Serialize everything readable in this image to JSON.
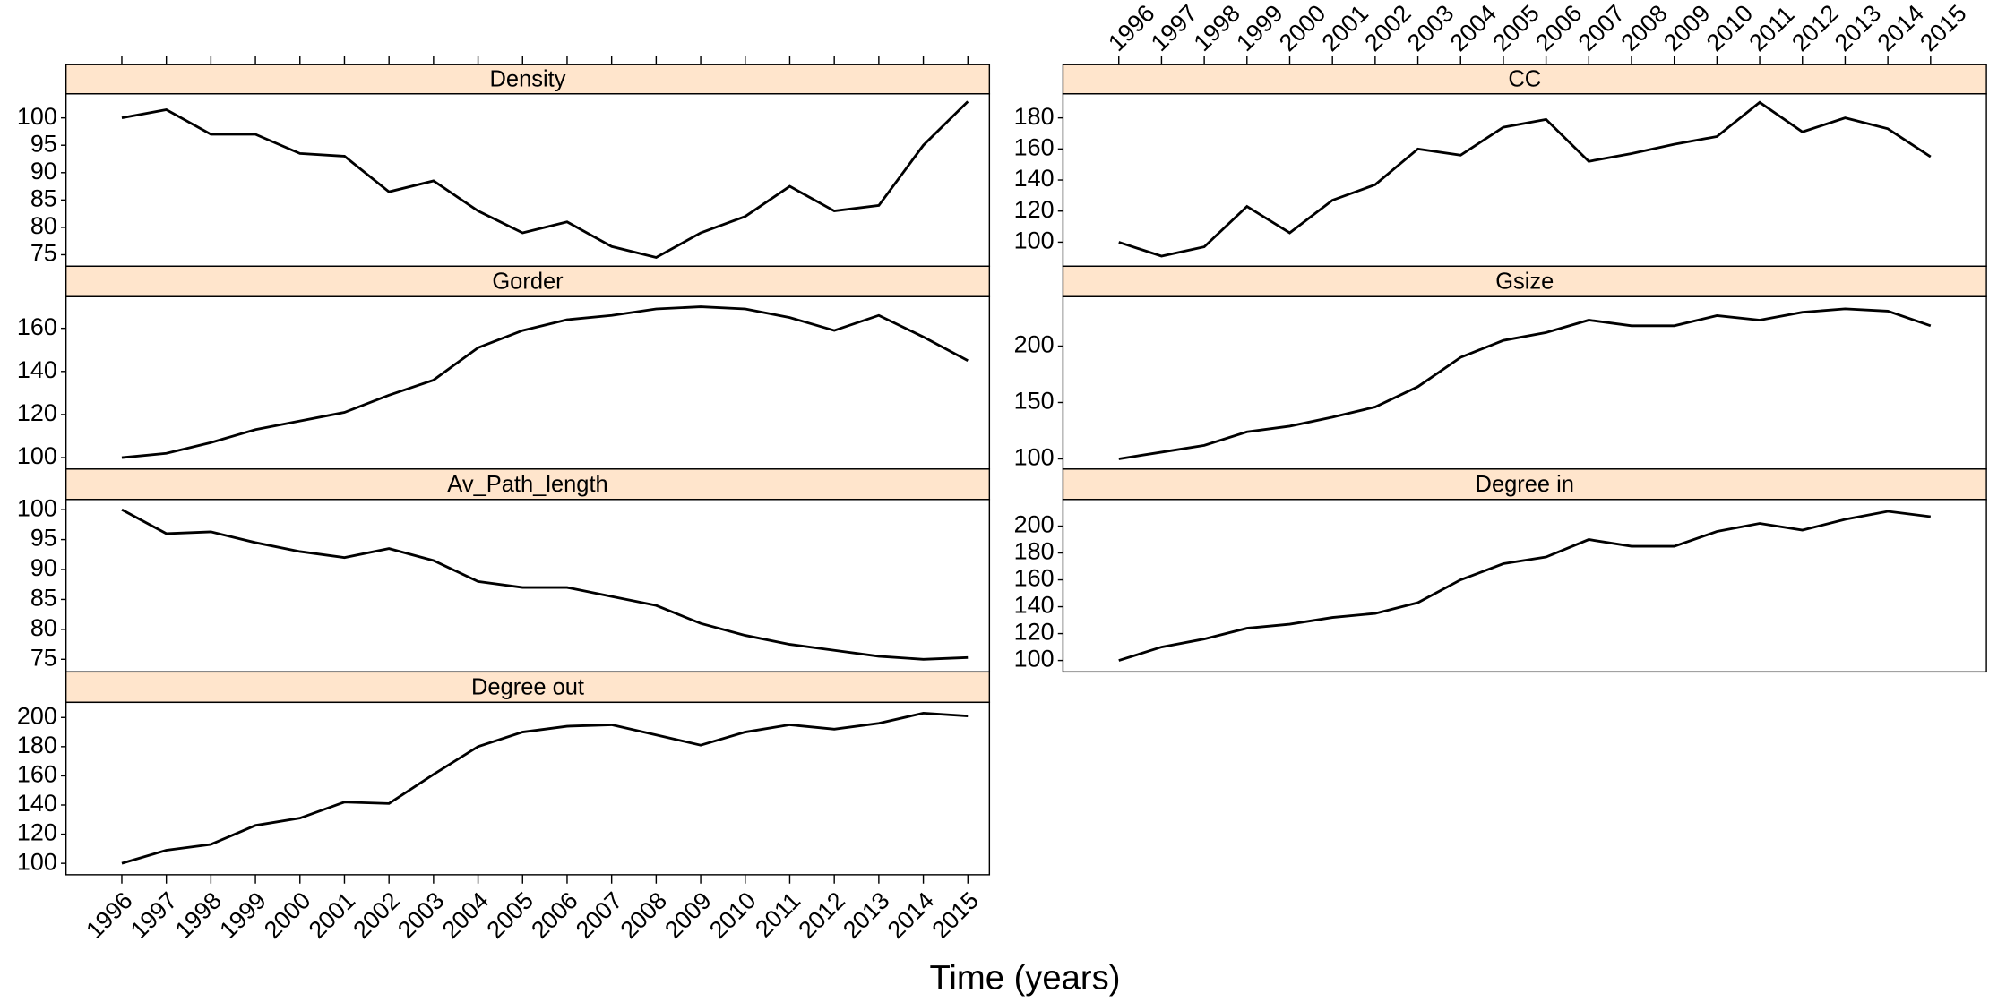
{
  "x": [
    1996,
    1997,
    1998,
    1999,
    2000,
    2001,
    2002,
    2003,
    2004,
    2005,
    2006,
    2007,
    2008,
    2009,
    2010,
    2011,
    2012,
    2013,
    2014,
    2015
  ],
  "xlabel": "Time (years)",
  "chart_data": [
    {
      "type": "line",
      "title": "Density",
      "color": "#000000",
      "values": [
        100,
        101.5,
        97,
        97,
        93.5,
        93,
        86.5,
        88.5,
        83,
        79,
        81,
        76.5,
        74.5,
        79,
        82,
        87.5,
        83,
        84,
        95,
        103
      ],
      "ylim": [
        72.9,
        104.4
      ],
      "yticks": [
        75,
        80,
        85,
        90,
        95,
        100
      ]
    },
    {
      "type": "line",
      "title": "CC",
      "color": "#000000",
      "values": [
        100,
        91,
        97,
        123,
        106,
        127,
        137,
        160,
        156,
        174,
        179,
        152,
        157,
        163,
        168,
        190,
        171,
        180,
        173,
        155
      ],
      "ylim": [
        84.5,
        195.5
      ],
      "yticks": [
        100,
        120,
        140,
        160,
        180
      ]
    },
    {
      "type": "line",
      "title": "Gorder",
      "color": "#000000",
      "values": [
        100,
        102,
        107,
        113,
        117,
        121,
        129,
        136,
        151,
        159,
        164,
        166,
        169,
        170,
        169,
        165,
        159,
        166,
        156,
        145
      ],
      "ylim": [
        94.7,
        174.7
      ],
      "yticks": [
        100,
        120,
        140,
        160
      ]
    },
    {
      "type": "line",
      "title": "Gsize",
      "color": "#000000",
      "values": [
        100,
        106,
        112,
        124,
        129,
        137,
        146,
        164,
        190,
        205,
        212,
        223,
        218,
        218,
        227,
        223,
        230,
        233,
        231,
        218
      ],
      "ylim": [
        91,
        243.8
      ],
      "yticks": [
        100,
        150,
        200
      ]
    },
    {
      "type": "line",
      "title": "Av_Path_length",
      "color": "#000000",
      "values": [
        100,
        96,
        96.3,
        94.5,
        93,
        92,
        93.5,
        91.5,
        88,
        87,
        87,
        85.5,
        84,
        81,
        79,
        77.5,
        76.5,
        75.5,
        75,
        75.3
      ],
      "ylim": [
        72.9,
        101.7
      ],
      "yticks": [
        75,
        80,
        85,
        90,
        95,
        100
      ]
    },
    {
      "type": "line",
      "title": "Degree in",
      "color": "#000000",
      "values": [
        100,
        110,
        116,
        124,
        127,
        132,
        135,
        143,
        160,
        172,
        177,
        190,
        185,
        185,
        196,
        202,
        197,
        205,
        211,
        207
      ],
      "ylim": [
        91.5,
        219.8
      ],
      "yticks": [
        100,
        120,
        140,
        160,
        180,
        200
      ]
    },
    {
      "type": "line",
      "title": "Degree out",
      "color": "#000000",
      "values": [
        100,
        109,
        113,
        126,
        131,
        142,
        141,
        161,
        180,
        190,
        194,
        195,
        188,
        181,
        190,
        195,
        192,
        196,
        203,
        201
      ],
      "ylim": [
        92.2,
        210.4
      ],
      "yticks": [
        100,
        120,
        140,
        160,
        180,
        200
      ]
    }
  ]
}
